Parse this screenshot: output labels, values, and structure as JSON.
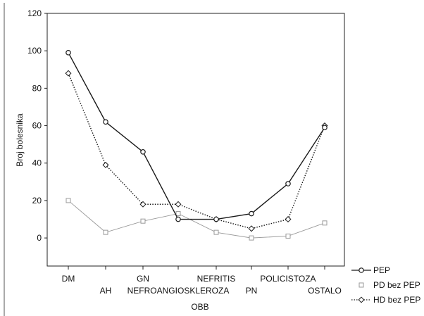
{
  "chart_data": {
    "type": "line",
    "xlabel": "OBB",
    "ylabel": "Broj bolesnika",
    "categories": [
      "DM",
      "AH",
      "GN",
      "NEFROANGIOSKLEROZA",
      "NEFRITIS",
      "PN",
      "POLICISTOZA",
      "OSTALO"
    ],
    "ylim": [
      -15,
      120
    ],
    "yticks": [
      0,
      20,
      40,
      60,
      80,
      100,
      120
    ],
    "series": [
      {
        "name": "PEP",
        "values": [
          99,
          62,
          46,
          10,
          10,
          13,
          29,
          59
        ],
        "color": "#1a1a1a",
        "marker": "circle",
        "dash": "solid"
      },
      {
        "name": "PD bez PEP",
        "values": [
          20,
          3,
          9,
          13,
          3,
          0,
          1,
          8
        ],
        "color": "#9a9a9a",
        "marker": "square",
        "dash": "solid"
      },
      {
        "name": "HD bez PEP",
        "values": [
          88,
          39,
          18,
          18,
          10,
          5,
          10,
          60
        ],
        "color": "#1a1a1a",
        "marker": "diamond",
        "dash": "dotted"
      }
    ],
    "legend_position": "bottom-right",
    "grid": false
  }
}
